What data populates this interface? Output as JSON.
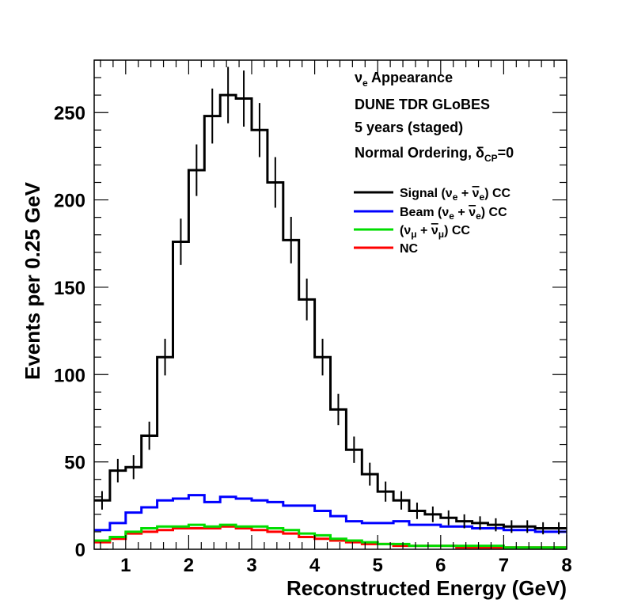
{
  "chart_data": {
    "type": "histogram",
    "xlabel": "Reconstructed Energy (GeV)",
    "ylabel": "Events per 0.25 GeV",
    "xlim": [
      0.5,
      8
    ],
    "ylim": [
      0,
      280
    ],
    "x_ticks": [
      "1",
      "2",
      "3",
      "4",
      "5",
      "6",
      "7",
      "8"
    ],
    "y_ticks": [
      "0",
      "50",
      "100",
      "150",
      "200",
      "250"
    ],
    "bin_edges": [
      0.5,
      0.75,
      1.0,
      1.25,
      1.5,
      1.75,
      2.0,
      2.25,
      2.5,
      2.75,
      3.0,
      3.25,
      3.5,
      3.75,
      4.0,
      4.25,
      4.5,
      4.75,
      5.0,
      5.25,
      5.5,
      5.75,
      6.0,
      6.25,
      6.5,
      6.75,
      7.0,
      7.25,
      7.5,
      7.75,
      8.0
    ],
    "annotations": {
      "line1_symbol": "ν",
      "line1_sub": "e",
      "line1_text": " Appearance",
      "line2": "DUNE TDR GLoBES",
      "line3": "5 years (staged)",
      "line4_text": "Normal Ordering, ",
      "line4_symbol": "δ",
      "line4_sub": "CP",
      "line4_tail": "=0"
    },
    "legend_position": "upper-right",
    "series": [
      {
        "name": "Signal (νe + ν̄e) CC",
        "legend": {
          "pre": "Signal (",
          "s1": "ν",
          "sub1": "e",
          "mid": " + ",
          "s2": "ν",
          "sub2": "e",
          "post": ") CC"
        },
        "color": "#000000",
        "error_bars": true,
        "values": [
          28,
          45,
          47,
          65,
          110,
          176,
          217,
          248,
          260,
          258,
          240,
          210,
          177,
          143,
          110,
          80,
          57,
          43,
          33,
          28,
          22,
          20,
          18,
          16,
          15,
          14,
          13,
          13,
          12,
          12
        ]
      },
      {
        "name": "Beam (νe + ν̄e) CC",
        "legend": {
          "pre": "Beam (",
          "s1": "ν",
          "sub1": "e",
          "mid": " + ",
          "s2": "ν",
          "sub2": "e",
          "post": ") CC"
        },
        "color": "#0000ff",
        "error_bars": false,
        "values": [
          11,
          15,
          21,
          24,
          28,
          29,
          31,
          27,
          30,
          29,
          28,
          27,
          25,
          25,
          22,
          19,
          16,
          15,
          15,
          16,
          14,
          14,
          13,
          13,
          12,
          12,
          11,
          11,
          10,
          10
        ]
      },
      {
        "name": "(νμ + ν̄μ) CC",
        "legend": {
          "pre": "(",
          "s1": "ν",
          "sub1": "μ",
          "mid": " + ",
          "s2": "ν",
          "sub2": "μ",
          "post": ") CC"
        },
        "color": "#00dd00",
        "error_bars": false,
        "values": [
          5,
          7,
          10,
          12,
          13,
          13,
          14,
          13,
          14,
          13,
          13,
          12,
          11,
          9,
          8,
          6,
          5,
          4,
          3,
          3,
          2,
          2,
          2,
          2,
          2,
          2,
          1,
          1,
          1,
          1
        ]
      },
      {
        "name": "NC",
        "legend": {
          "pre": "NC",
          "s1": "",
          "sub1": "",
          "mid": "",
          "s2": "",
          "sub2": "",
          "post": ""
        },
        "color": "#ff0000",
        "error_bars": false,
        "values": [
          4,
          6,
          9,
          10,
          11,
          12,
          12,
          12,
          13,
          12,
          11,
          10,
          9,
          7,
          6,
          5,
          4,
          3,
          3,
          2,
          2,
          2,
          2,
          1,
          1,
          1,
          1,
          1,
          1,
          1
        ]
      }
    ]
  }
}
